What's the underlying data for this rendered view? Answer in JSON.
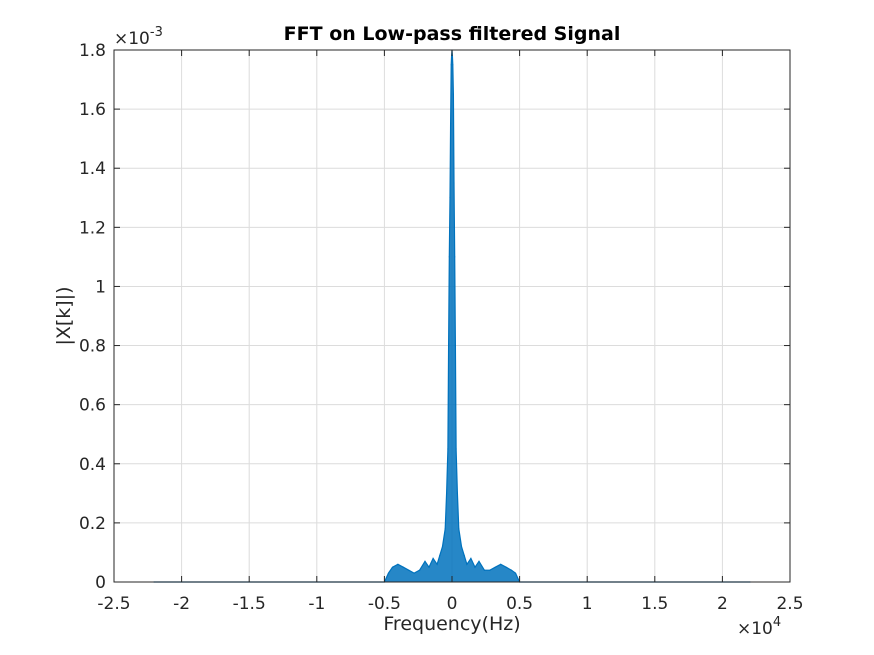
{
  "chart_data": {
    "type": "line",
    "title": "FFT on Low-pass filtered Signal",
    "xlabel": "Frequency(Hz)",
    "ylabel": "|X[k]|)",
    "x_multiplier": {
      "base": "×10",
      "exponent": "4"
    },
    "y_multiplier": {
      "base": "×10",
      "exponent": "-3"
    },
    "xlim": [
      -25000,
      25000
    ],
    "ylim": [
      0,
      0.0018
    ],
    "x_ticks": [
      -25000,
      -20000,
      -15000,
      -10000,
      -5000,
      0,
      5000,
      10000,
      15000,
      20000,
      25000
    ],
    "x_tick_labels": [
      "-2.5",
      "-2",
      "-1.5",
      "-1",
      "-0.5",
      "0",
      "0.5",
      "1",
      "1.5",
      "2",
      "2.5"
    ],
    "y_ticks": [
      0,
      0.0002,
      0.0004,
      0.0006,
      0.0008,
      0.001,
      0.0012,
      0.0014,
      0.0016,
      0.0018
    ],
    "y_tick_labels": [
      "0",
      "0.2",
      "0.4",
      "0.6",
      "0.8",
      "1",
      "1.2",
      "1.4",
      "1.6",
      "1.8"
    ],
    "grid": true,
    "line_color": "#0072bd",
    "series": [
      {
        "x": [
          -22050,
          -5000,
          -4700,
          -4400,
          -4000,
          -3600,
          -3200,
          -2800,
          -2400,
          -2000,
          -1700,
          -1400,
          -1100,
          -900,
          -700,
          -500,
          -400,
          -300,
          -250,
          -200,
          -150,
          -100,
          -60,
          -30,
          0,
          30,
          60,
          100,
          150,
          200,
          250,
          300,
          400,
          500,
          700,
          900,
          1100,
          1400,
          1700,
          2000,
          2400,
          2800,
          3200,
          3600,
          4000,
          4400,
          4700,
          5000,
          22050
        ],
        "y": [
          0,
          0,
          3e-05,
          5e-05,
          6e-05,
          5e-05,
          4e-05,
          3e-05,
          4e-05,
          7e-05,
          5e-05,
          8e-05,
          6e-05,
          9e-05,
          0.00012,
          0.00018,
          0.0003,
          0.00045,
          0.0008,
          0.0011,
          0.0013,
          0.00155,
          0.00175,
          0.00178,
          0.0018,
          0.00178,
          0.00175,
          0.00165,
          0.00135,
          0.0011,
          0.0008,
          0.00045,
          0.0003,
          0.00018,
          0.00012,
          9e-05,
          6e-05,
          8e-05,
          5e-05,
          7e-05,
          4e-05,
          4e-05,
          5e-05,
          6e-05,
          5e-05,
          4e-05,
          3e-05,
          0,
          0
        ]
      }
    ]
  }
}
